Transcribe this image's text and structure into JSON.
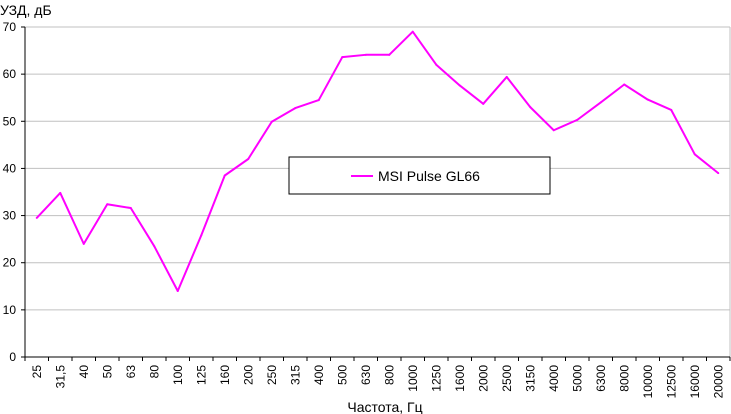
{
  "chart_data": {
    "type": "line",
    "title": "",
    "ylabel": "УЗД, дБ",
    "xlabel": "Частота, Гц",
    "ylim": [
      0,
      70
    ],
    "yticks": [
      0,
      10,
      20,
      30,
      40,
      50,
      60,
      70
    ],
    "grid": "horizontal",
    "legend_position": "center",
    "categories": [
      "25",
      "31,5",
      "40",
      "50",
      "63",
      "80",
      "100",
      "125",
      "160",
      "200",
      "250",
      "315",
      "400",
      "500",
      "630",
      "800",
      "1000",
      "1250",
      "1600",
      "2000",
      "2500",
      "3150",
      "4000",
      "5000",
      "6300",
      "8000",
      "10000",
      "12500",
      "16000",
      "20000"
    ],
    "series": [
      {
        "name": "MSI Pulse GL66",
        "color": "#ff00ff",
        "values": [
          29.5,
          34.8,
          24.0,
          32.4,
          31.6,
          23.5,
          14.0,
          25.8,
          38.5,
          42.0,
          49.9,
          52.8,
          54.5,
          63.6,
          64.1,
          64.1,
          69.0,
          62.0,
          57.6,
          53.7,
          59.4,
          53.0,
          48.1,
          50.3,
          54.0,
          57.8,
          54.6,
          52.4,
          43.0,
          39.0
        ]
      }
    ]
  }
}
